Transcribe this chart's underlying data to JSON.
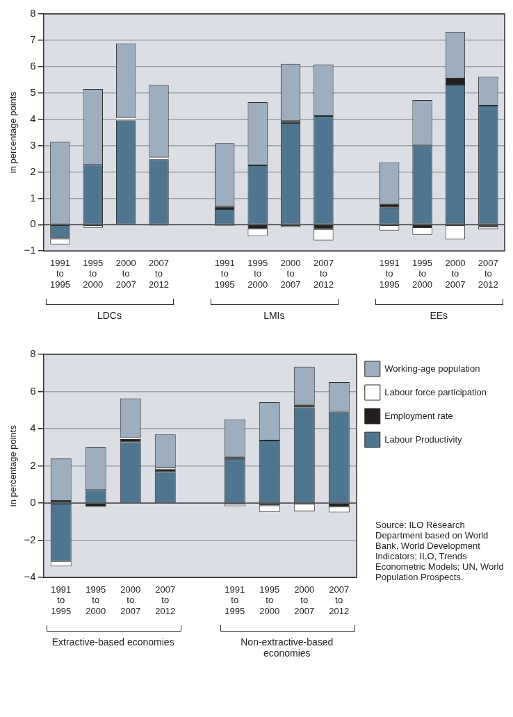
{
  "chart_data": [
    {
      "type": "bar",
      "stacked": true,
      "ylabel": "in percentage points",
      "categories": [
        "1991\nto\n1995",
        "1995\nto\n2000",
        "2000\nto\n2007",
        "2007\nto\n2012",
        null,
        "1991\nto\n1995",
        "1995\nto\n2000",
        "2000\nto\n2007",
        "2007\nto\n2012",
        null,
        "1991\nto\n1995",
        "1995\nto\n2000",
        "2000\nto\n2007",
        "2007\nto\n2012"
      ],
      "series": [
        {
          "color": "#4f7690",
          "values": [
            -0.5,
            2.27,
            3.95,
            2.48,
            null,
            0.59,
            2.25,
            3.86,
            4.12,
            null,
            0.65,
            3.03,
            5.31,
            4.52
          ]
        },
        {
          "color": "#231f20",
          "values": [
            -0.03,
            0,
            0.03,
            -0.03,
            null,
            0.1,
            -0.16,
            0.07,
            -0.17,
            null,
            0.13,
            -0.1,
            0.24,
            -0.08
          ]
        },
        {
          "color": "#ffffff",
          "values": [
            -0.22,
            -0.12,
            0.08,
            0.07,
            null,
            -0.05,
            -0.27,
            -0.1,
            -0.43,
            null,
            -0.22,
            -0.28,
            -0.56,
            -0.1
          ]
        },
        {
          "color": "#9caebf",
          "values": [
            3.15,
            2.88,
            2.82,
            2.75,
            null,
            2.4,
            2.4,
            2.18,
            1.96,
            null,
            1.59,
            1.7,
            1.77,
            1.09
          ]
        }
      ],
      "ylim": [
        -1,
        8
      ],
      "yticks": [
        {
          "value": -1,
          "label": "−1"
        },
        0,
        1,
        2,
        3,
        4,
        5,
        6,
        7,
        8
      ],
      "grid": "y",
      "legend": false,
      "annotations": [
        "LDCs",
        "LMIs",
        "EEs"
      ]
    },
    {
      "type": "bar",
      "stacked": true,
      "ylabel": "in percentage points",
      "categories": [
        "1991\nto\n1995",
        "1995\nto\n2000",
        "2000\nto\n2007",
        "2007\nto\n2012",
        null,
        "1991\nto\n1995",
        "1995\nto\n2000",
        "2000\nto\n2007",
        "2007\nto\n2012"
      ],
      "series": [
        {
          "name": "Labour Productivity",
          "color": "#4f7690",
          "values": [
            -3.12,
            0.71,
            3.27,
            1.67,
            null,
            2.37,
            3.37,
            5.14,
            4.92
          ]
        },
        {
          "name": "Employment rate",
          "color": "#231f20",
          "values": [
            0.12,
            -0.2,
            0.17,
            0.14,
            null,
            0.12,
            -0.13,
            0.15,
            -0.19
          ]
        },
        {
          "name": "Labour force participation",
          "color": "#ffffff",
          "values": [
            -0.28,
            0,
            0.09,
            0.11,
            null,
            -0.16,
            -0.34,
            -0.44,
            -0.31
          ]
        },
        {
          "name": "Working-age population",
          "color": "#9caebf",
          "values": [
            2.28,
            2.28,
            2.1,
            1.77,
            null,
            2.02,
            2.05,
            2.05,
            1.59
          ]
        }
      ],
      "ylim": [
        -4,
        8
      ],
      "yticks": [
        {
          "value": -4,
          "label": "−4"
        },
        {
          "value": -2,
          "label": "−2"
        },
        0,
        2,
        4,
        6,
        8
      ],
      "grid": "y",
      "legend": "right",
      "annotations": [
        "Extractive-based economies",
        "Non-extractive-based economies",
        "Source: ILO Research Department based on World Bank, World Development Indicators; ILO, Trends Econometric Models; UN, World Population Prospects."
      ]
    }
  ]
}
